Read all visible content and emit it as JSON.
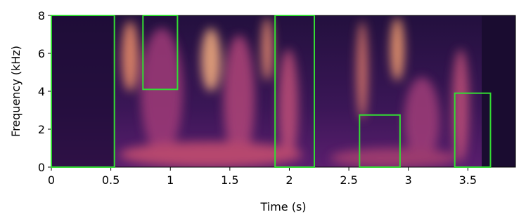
{
  "chart_data": {
    "type": "spectrogram",
    "xlabel": "Time (s)",
    "ylabel": "Frequency (kHz)",
    "xlim": [
      0,
      3.9
    ],
    "xticks": [
      0,
      0.5,
      1,
      1.5,
      2,
      2.5,
      3,
      3.5
    ],
    "ylim": [
      0,
      8
    ],
    "yticks": [
      0,
      2,
      4,
      6,
      8
    ],
    "box_color": "#33dd33",
    "boxes": [
      {
        "x": [
          0,
          0.53
        ],
        "y": [
          0,
          8
        ]
      },
      {
        "x": [
          0.77,
          1.06
        ],
        "y": [
          4.1,
          8
        ]
      },
      {
        "x": [
          1.88,
          2.21
        ],
        "y": [
          0,
          8
        ]
      },
      {
        "x": [
          2.59,
          2.93
        ],
        "y": [
          0,
          2.75
        ]
      },
      {
        "x": [
          3.39,
          3.69
        ],
        "y": [
          0,
          3.9
        ]
      }
    ]
  }
}
